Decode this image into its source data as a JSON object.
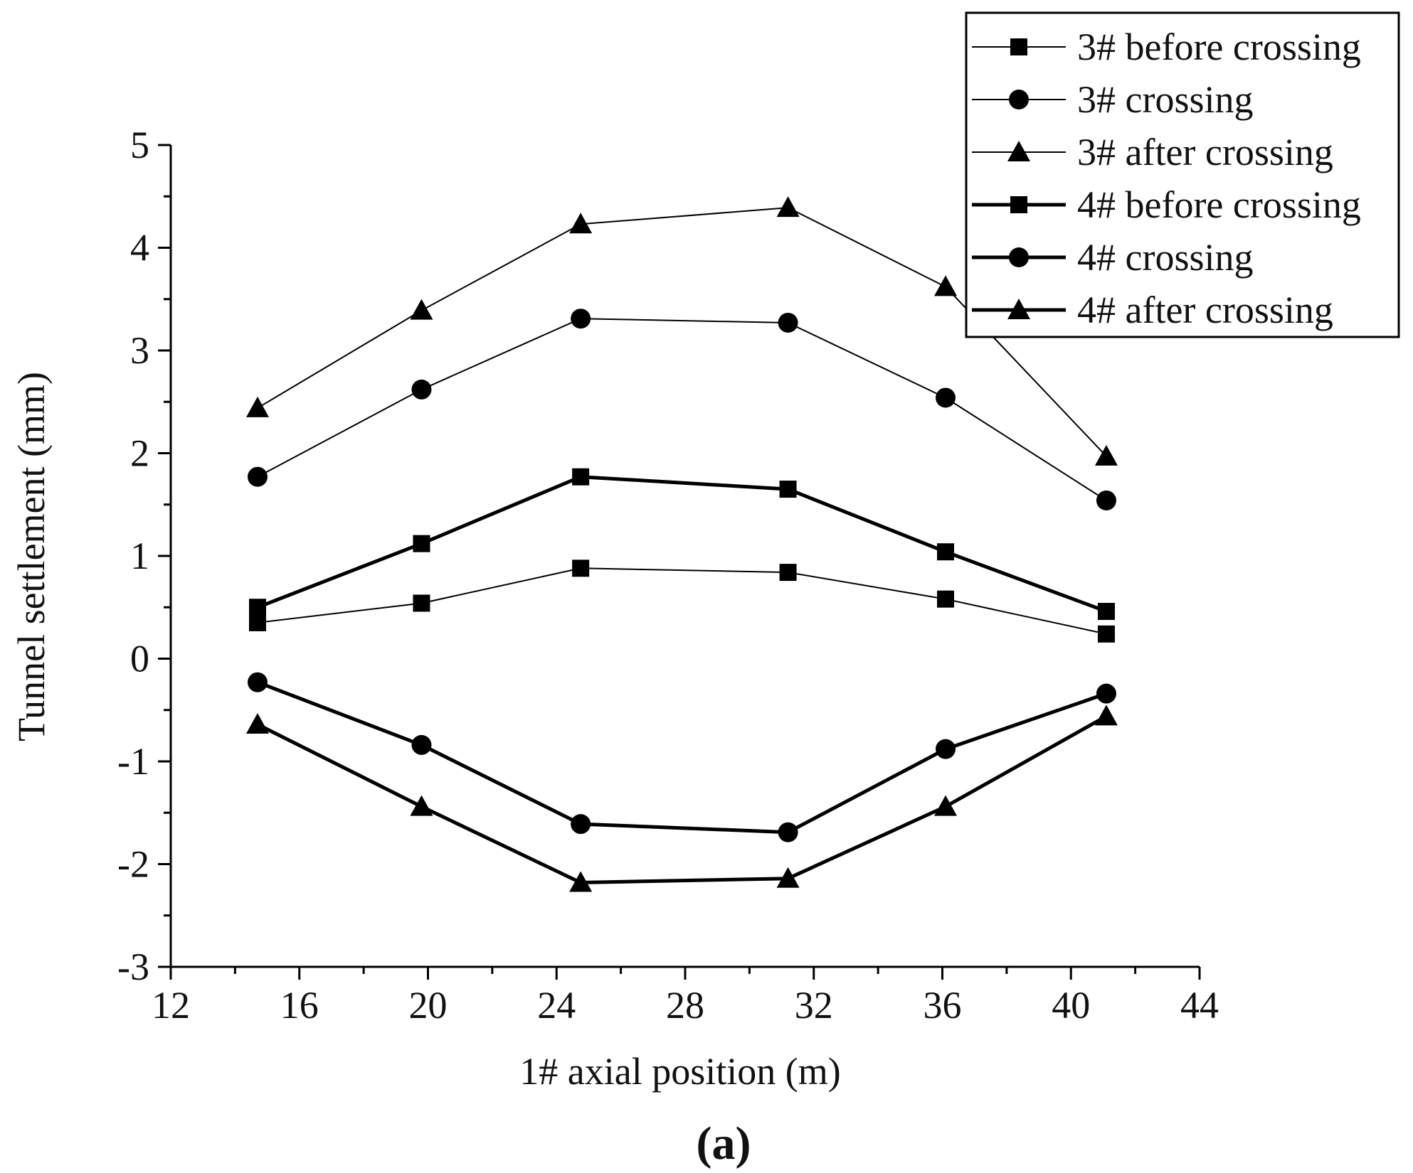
{
  "chart_data": {
    "type": "line",
    "xlabel": "1# axial position (m)",
    "ylabel": "Tunnel settlement (mm)",
    "panel_label": "(a)",
    "xlim": [
      12,
      44
    ],
    "ylim": [
      -3,
      5
    ],
    "xticks": [
      12,
      16,
      20,
      24,
      28,
      32,
      36,
      40,
      44
    ],
    "xtick_labels": [
      "12",
      "16",
      "20",
      "24",
      "28",
      "32",
      "36",
      "40",
      "44"
    ],
    "yticks": [
      -3,
      -2,
      -1,
      0,
      1,
      2,
      3,
      4,
      5
    ],
    "ytick_labels": [
      "-3",
      "-2",
      "-1",
      "0",
      "1",
      "2",
      "3",
      "4",
      "5"
    ],
    "x": [
      14.7,
      19.8,
      24.75,
      31.2,
      36.1,
      41.1
    ],
    "legend_position": "top-right",
    "series": [
      {
        "name": "3# before crossing",
        "marker": "square",
        "weight": "thin",
        "values": [
          0.35,
          0.54,
          0.88,
          0.84,
          0.58,
          0.24
        ]
      },
      {
        "name": "3# crossing",
        "marker": "circle",
        "weight": "thin",
        "values": [
          1.77,
          2.62,
          3.31,
          3.27,
          2.54,
          1.54
        ]
      },
      {
        "name": "3# after crossing",
        "marker": "triangle",
        "weight": "thin",
        "values": [
          2.44,
          3.39,
          4.23,
          4.39,
          3.62,
          1.97
        ]
      },
      {
        "name": "4# before crossing",
        "marker": "square",
        "weight": "thick",
        "values": [
          0.5,
          1.12,
          1.77,
          1.65,
          1.04,
          0.46
        ]
      },
      {
        "name": "4# crossing",
        "marker": "circle",
        "weight": "thick",
        "values": [
          -0.23,
          -0.84,
          -1.61,
          -1.69,
          -0.88,
          -0.34
        ]
      },
      {
        "name": "4# after crossing",
        "marker": "triangle",
        "weight": "thick",
        "values": [
          -0.64,
          -1.44,
          -2.18,
          -2.14,
          -1.44,
          -0.56
        ]
      }
    ]
  }
}
